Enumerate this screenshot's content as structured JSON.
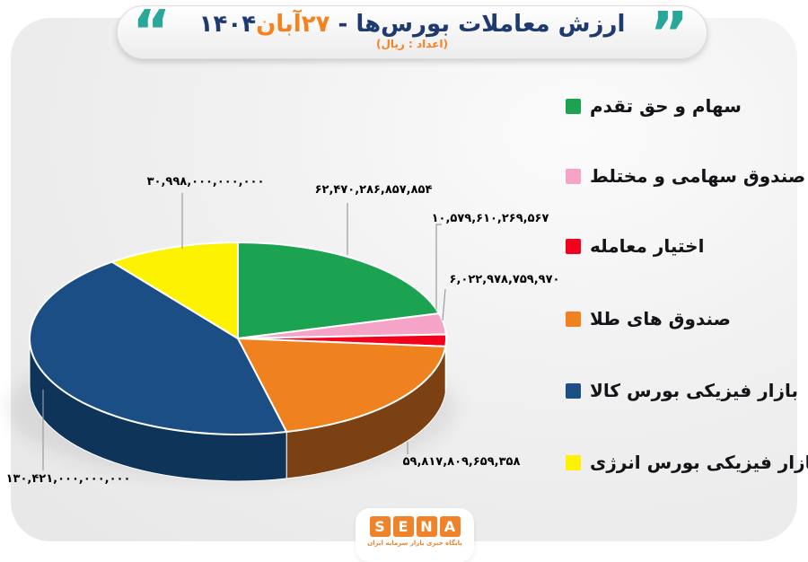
{
  "title": {
    "main": "ارزش معاملات بورس‌ها - ",
    "date_highlight": "۲۷آبان",
    "year": "۱۴۰۴",
    "subtitle": "(اعداد : ریال)",
    "quote_open": "“",
    "quote_close": "”"
  },
  "colors": {
    "navy": "#1e3a70",
    "accent_orange": "#f6821f",
    "quote_teal": "#29a79a",
    "leader_line": "#9b9b9b",
    "card_bg": "#efefef"
  },
  "chart_data": {
    "type": "pie",
    "title": "ارزش معاملات بورس‌ها - ۲۷آبان۱۴۰۴",
    "unit_note": "(اعداد : ریال)",
    "style": "3d",
    "start_angle_deg": 0,
    "direction": "clockwise",
    "legend_position": "right",
    "series": [
      {
        "name": "سهام و حق تقدم",
        "value": 62470286857854,
        "display": "۶۲,۴۷۰,۲۸۶,۸۵۷,۸۵۴",
        "color": "#1ca351",
        "side_color": "#0e6b33"
      },
      {
        "name": "صندوق سهامی و مختلط",
        "value": 10579610269567,
        "display": "۱۰,۵۷۹,۶۱۰,۲۶۹,۵۶۷",
        "color": "#f6a3c8",
        "side_color": "#b55e86"
      },
      {
        "name": "اختیار معامله",
        "value": 6022978759970,
        "display": "۶,۰۲۲,۹۷۸,۷۵۹,۹۷۰",
        "color": "#f2001c",
        "side_color": "#9e0013"
      },
      {
        "name": "صندوق های طلا",
        "value": 59817809659358,
        "display": "۵۹,۸۱۷,۸۰۹,۶۵۹,۳۵۸",
        "color": "#f0811f",
        "side_color": "#7c4113"
      },
      {
        "name": "بازار فیزیکی بورس کالا",
        "value": 130421000000000,
        "display": "۱۳۰,۴۲۱,۰۰۰,۰۰۰,۰۰۰",
        "color": "#1a4e85",
        "side_color": "#0f3459"
      },
      {
        "name": "بازار فیزیکی بورس انرژی",
        "value": 30998000000000,
        "display": "۳۰,۹۹۸,۰۰۰,۰۰۰,۰۰۰",
        "color": "#fdf300",
        "side_color": "#a39b00"
      }
    ]
  },
  "logo": {
    "letters": [
      "S",
      "E",
      "N",
      "A"
    ],
    "caption": "پایگاه خبری بازار سرمایه ایران"
  }
}
